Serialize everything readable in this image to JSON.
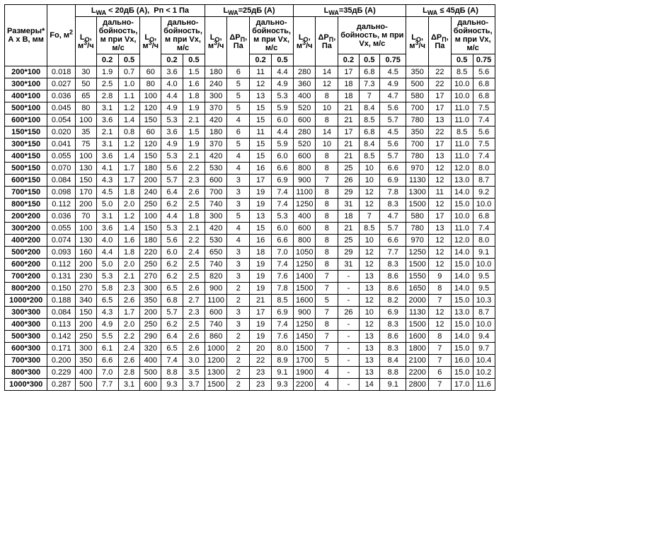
{
  "groupHeaders": [
    "L<sub>WA</sub> &lt; 20дБ (А),&nbsp;&nbsp;Рп &lt; 1 Па",
    "L<sub>WA</sub>=25дБ (А)",
    "L<sub>WA</sub>=35дБ (А)",
    "L<sub>WA</sub> ≤ 45дБ (А)"
  ],
  "cornerHeaders": {
    "size": "Размеры*<br>А х В, мм",
    "fo": "Fо, м<sup>2</sup>"
  },
  "subHeaders": {
    "lo": "L<sub>O</sub>,<br>м<sup>3</sup>/ч",
    "dp": "ΔP<sub>П</sub>,<br>Па",
    "range": "дально-<br>бойность,<br>м при Vx,<br>м/с",
    "range_wide": "дально-<br>бойность, м при<br>Vx, м/с"
  },
  "velHeaders": [
    "0.2",
    "0.5",
    "0.75"
  ],
  "rows": [
    [
      "200*100",
      "0.018",
      "30",
      "1.9",
      "0.7",
      "60",
      "3.6",
      "1.5",
      "180",
      "6",
      "11",
      "4.4",
      "280",
      "14",
      "17",
      "6.8",
      "4.5",
      "350",
      "22",
      "8.5",
      "5.6"
    ],
    [
      "300*100",
      "0.027",
      "50",
      "2.5",
      "1.0",
      "80",
      "4.0",
      "1.6",
      "240",
      "5",
      "12",
      "4.9",
      "360",
      "12",
      "18",
      "7.3",
      "4.9",
      "500",
      "22",
      "10.0",
      "6.8"
    ],
    [
      "400*100",
      "0.036",
      "65",
      "2.8",
      "1.1",
      "100",
      "4.4",
      "1.8",
      "300",
      "5",
      "13",
      "5.3",
      "400",
      "8",
      "18",
      "7",
      "4.7",
      "580",
      "17",
      "10.0",
      "6.8"
    ],
    [
      "500*100",
      "0.045",
      "80",
      "3.1",
      "1.2",
      "120",
      "4.9",
      "1.9",
      "370",
      "5",
      "15",
      "5.9",
      "520",
      "10",
      "21",
      "8.4",
      "5.6",
      "700",
      "17",
      "11.0",
      "7.5"
    ],
    [
      "600*100",
      "0.054",
      "100",
      "3.6",
      "1.4",
      "150",
      "5.3",
      "2.1",
      "420",
      "4",
      "15",
      "6.0",
      "600",
      "8",
      "21",
      "8.5",
      "5.7",
      "780",
      "13",
      "11.0",
      "7.4"
    ],
    [
      "150*150",
      "0.020",
      "35",
      "2.1",
      "0.8",
      "60",
      "3.6",
      "1.5",
      "180",
      "6",
      "11",
      "4.4",
      "280",
      "14",
      "17",
      "6.8",
      "4.5",
      "350",
      "22",
      "8.5",
      "5.6"
    ],
    [
      "300*150",
      "0.041",
      "75",
      "3.1",
      "1.2",
      "120",
      "4.9",
      "1.9",
      "370",
      "5",
      "15",
      "5.9",
      "520",
      "10",
      "21",
      "8.4",
      "5.6",
      "700",
      "17",
      "11.0",
      "7.5"
    ],
    [
      "400*150",
      "0.055",
      "100",
      "3.6",
      "1.4",
      "150",
      "5.3",
      "2.1",
      "420",
      "4",
      "15",
      "6.0",
      "600",
      "8",
      "21",
      "8.5",
      "5.7",
      "780",
      "13",
      "11.0",
      "7.4"
    ],
    [
      "500*150",
      "0.070",
      "130",
      "4.1",
      "1.7",
      "180",
      "5.6",
      "2.2",
      "530",
      "4",
      "16",
      "6.6",
      "800",
      "8",
      "25",
      "10",
      "6.6",
      "970",
      "12",
      "12.0",
      "8.0"
    ],
    [
      "600*150",
      "0.084",
      "150",
      "4.3",
      "1.7",
      "200",
      "5.7",
      "2.3",
      "600",
      "3",
      "17",
      "6.9",
      "900",
      "7",
      "26",
      "10",
      "6.9",
      "1130",
      "12",
      "13.0",
      "8.7"
    ],
    [
      "700*150",
      "0.098",
      "170",
      "4.5",
      "1.8",
      "240",
      "6.4",
      "2.6",
      "700",
      "3",
      "19",
      "7.4",
      "1100",
      "8",
      "29",
      "12",
      "7.8",
      "1300",
      "11",
      "14.0",
      "9.2"
    ],
    [
      "800*150",
      "0.112",
      "200",
      "5.0",
      "2.0",
      "250",
      "6.2",
      "2.5",
      "740",
      "3",
      "19",
      "7.4",
      "1250",
      "8",
      "31",
      "12",
      "8.3",
      "1500",
      "12",
      "15.0",
      "10.0"
    ],
    [
      "200*200",
      "0.036",
      "70",
      "3.1",
      "1.2",
      "100",
      "4.4",
      "1.8",
      "300",
      "5",
      "13",
      "5.3",
      "400",
      "8",
      "18",
      "7",
      "4.7",
      "580",
      "17",
      "10.0",
      "6.8"
    ],
    [
      "300*200",
      "0.055",
      "100",
      "3.6",
      "1.4",
      "150",
      "5.3",
      "2.1",
      "420",
      "4",
      "15",
      "6.0",
      "600",
      "8",
      "21",
      "8.5",
      "5.7",
      "780",
      "13",
      "11.0",
      "7.4"
    ],
    [
      "400*200",
      "0.074",
      "130",
      "4.0",
      "1.6",
      "180",
      "5.6",
      "2.2",
      "530",
      "4",
      "16",
      "6.6",
      "800",
      "8",
      "25",
      "10",
      "6.6",
      "970",
      "12",
      "12.0",
      "8.0"
    ],
    [
      "500*200",
      "0.093",
      "160",
      "4.4",
      "1.8",
      "220",
      "6.0",
      "2.4",
      "650",
      "3",
      "18",
      "7.0",
      "1050",
      "8",
      "29",
      "12",
      "7.7",
      "1250",
      "12",
      "14.0",
      "9.1"
    ],
    [
      "600*200",
      "0.112",
      "200",
      "5.0",
      "2.0",
      "250",
      "6.2",
      "2.5",
      "740",
      "3",
      "19",
      "7.4",
      "1250",
      "8",
      "31",
      "12",
      "8.3",
      "1500",
      "12",
      "15.0",
      "10.0"
    ],
    [
      "700*200",
      "0.131",
      "230",
      "5.3",
      "2.1",
      "270",
      "6.2",
      "2.5",
      "820",
      "3",
      "19",
      "7.6",
      "1400",
      "7",
      "-",
      "13",
      "8.6",
      "1550",
      "9",
      "14.0",
      "9.5"
    ],
    [
      "800*200",
      "0.150",
      "270",
      "5.8",
      "2.3",
      "300",
      "6.5",
      "2.6",
      "900",
      "2",
      "19",
      "7.8",
      "1500",
      "7",
      "-",
      "13",
      "8.6",
      "1650",
      "8",
      "14.0",
      "9.5"
    ],
    [
      "1000*200",
      "0.188",
      "340",
      "6.5",
      "2.6",
      "350",
      "6.8",
      "2.7",
      "1100",
      "2",
      "21",
      "8.5",
      "1600",
      "5",
      "-",
      "12",
      "8.2",
      "2000",
      "7",
      "15.0",
      "10.3"
    ],
    [
      "300*300",
      "0.084",
      "150",
      "4.3",
      "1.7",
      "200",
      "5.7",
      "2.3",
      "600",
      "3",
      "17",
      "6.9",
      "900",
      "7",
      "26",
      "10",
      "6.9",
      "1130",
      "12",
      "13.0",
      "8.7"
    ],
    [
      "400*300",
      "0.113",
      "200",
      "4.9",
      "2.0",
      "250",
      "6.2",
      "2.5",
      "740",
      "3",
      "19",
      "7.4",
      "1250",
      "8",
      "-",
      "12",
      "8.3",
      "1500",
      "12",
      "15.0",
      "10.0"
    ],
    [
      "500*300",
      "0.142",
      "250",
      "5.5",
      "2.2",
      "290",
      "6.4",
      "2.6",
      "860",
      "2",
      "19",
      "7.6",
      "1450",
      "7",
      "-",
      "13",
      "8.6",
      "1600",
      "8",
      "14.0",
      "9.4"
    ],
    [
      "600*300",
      "0.171",
      "300",
      "6.1",
      "2.4",
      "320",
      "6.5",
      "2.6",
      "1000",
      "2",
      "20",
      "8.0",
      "1500",
      "7",
      "-",
      "13",
      "8.3",
      "1800",
      "7",
      "15.0",
      "9.7"
    ],
    [
      "700*300",
      "0.200",
      "350",
      "6.6",
      "2.6",
      "400",
      "7.4",
      "3.0",
      "1200",
      "2",
      "22",
      "8.9",
      "1700",
      "5",
      "-",
      "13",
      "8.4",
      "2100",
      "7",
      "16.0",
      "10.4"
    ],
    [
      "800*300",
      "0.229",
      "400",
      "7.0",
      "2.8",
      "500",
      "8.8",
      "3.5",
      "1300",
      "2",
      "23",
      "9.1",
      "1900",
      "4",
      "-",
      "13",
      "8.8",
      "2200",
      "6",
      "15.0",
      "10.2"
    ],
    [
      "1000*300",
      "0.287",
      "500",
      "7.7",
      "3.1",
      "600",
      "9.3",
      "3.7",
      "1500",
      "2",
      "23",
      "9.3",
      "2200",
      "4",
      "-",
      "14",
      "9.1",
      "2800",
      "7",
      "17.0",
      "11.6"
    ]
  ]
}
